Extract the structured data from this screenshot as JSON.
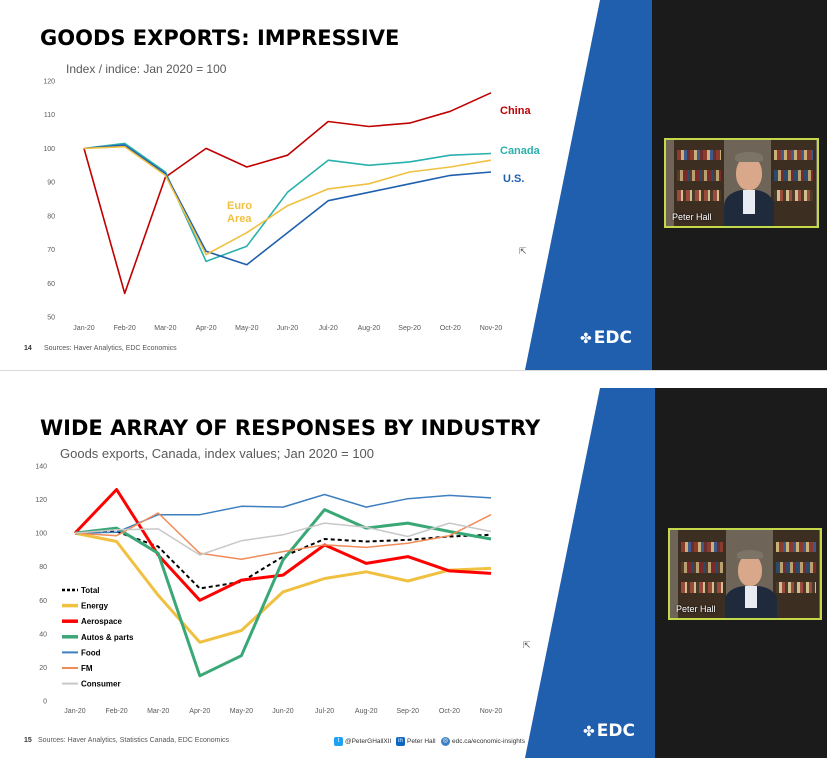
{
  "slides": [
    {
      "title": "GOODS EXPORTS: IMPRESSIVE",
      "subtitle": "Index / indice: Jan 2020 = 100",
      "page_number": "14",
      "source": "Sources: Haver Analytics, EDC Economics",
      "logo_text": "EDC",
      "presenter_name": "Peter Hall"
    },
    {
      "title": "WIDE ARRAY OF RESPONSES BY INDUSTRY",
      "subtitle": "Goods exports, Canada, index values; Jan 2020 = 100",
      "page_number": "15",
      "source": "Sources: Haver Analytics, Statistics Canada, EDC Economics",
      "logo_text": "EDC",
      "presenter_name": "Peter Hall",
      "social": {
        "twitter": "@PeterGHallXII",
        "linkedin": "Peter Hall",
        "web": "edc.ca/economic-insights"
      }
    }
  ],
  "colors": {
    "blue_band": "#1f5fae",
    "black_panel": "#1b1b1b",
    "video_border": "#c4d94a"
  },
  "chart_data": [
    {
      "type": "line",
      "title": "",
      "ylim": [
        50,
        120
      ],
      "yticks": [
        50,
        60,
        70,
        80,
        90,
        100,
        110,
        120
      ],
      "categories": [
        "Jan-20",
        "Feb-20",
        "Mar-20",
        "Apr-20",
        "May-20",
        "Jun-20",
        "Jul-20",
        "Aug-20",
        "Sep-20",
        "Oct-20",
        "Nov-20"
      ],
      "grid": false,
      "legend": "direct labels",
      "series": [
        {
          "name": "China",
          "color": "#c00000",
          "values": [
            100,
            57,
            91.5,
            100,
            94.5,
            98,
            108,
            106.5,
            107.5,
            111,
            116.5
          ]
        },
        {
          "name": "Canada",
          "color": "#2ab0ad",
          "values": [
            100,
            101.5,
            93,
            66.5,
            71,
            87,
            96.5,
            95,
            96,
            98,
            98.5
          ]
        },
        {
          "name": "U.S.",
          "color": "#1f5fae",
          "values": [
            100,
            101,
            92.5,
            69.5,
            65.5,
            75,
            84.5,
            87,
            89.5,
            92,
            93
          ]
        },
        {
          "name": "Euro Area",
          "color": "#f0c040",
          "values": [
            100,
            100.5,
            92,
            68.5,
            75,
            83,
            88,
            89.5,
            93,
            94.5,
            96.5
          ]
        }
      ],
      "series_labels": {
        "China": "China",
        "Canada": "Canada",
        "U.S.": "U.S.",
        "Euro_line1": "Euro",
        "Euro_line2": "Area"
      }
    },
    {
      "type": "line",
      "title": "",
      "ylim": [
        0,
        140
      ],
      "yticks": [
        0,
        20,
        40,
        60,
        80,
        100,
        120,
        140
      ],
      "categories": [
        "Jan-20",
        "Feb-20",
        "Mar-20",
        "Apr-20",
        "May-20",
        "Jun-20",
        "Jul-20",
        "Aug-20",
        "Sep-20",
        "Oct-20",
        "Nov-20"
      ],
      "grid": false,
      "legend": "left",
      "series": [
        {
          "name": "Total",
          "color": "#000000",
          "dash": true,
          "width": 2,
          "values": [
            100,
            101,
            92,
            67,
            71,
            86,
            96.5,
            95,
            96,
            98,
            99
          ]
        },
        {
          "name": "Energy",
          "color": "#f0c040",
          "width": 3,
          "values": [
            100,
            95,
            63,
            35,
            42,
            65,
            73,
            77,
            71.5,
            78,
            79
          ]
        },
        {
          "name": "Aerospace",
          "color": "#ff0000",
          "width": 3,
          "values": [
            100,
            126,
            87,
            60,
            72,
            75,
            93,
            82,
            86,
            77.5,
            76
          ]
        },
        {
          "name": "Autos & parts",
          "color": "#3aa876",
          "width": 3,
          "values": [
            100,
            103,
            88,
            15,
            27,
            84,
            114,
            103,
            106,
            101,
            96.5
          ]
        },
        {
          "name": "Food",
          "color": "#3e7fc1",
          "width": 1.5,
          "values": [
            100,
            100.5,
            111,
            111,
            116,
            115.5,
            123,
            115.5,
            120.5,
            122.5,
            121
          ]
        },
        {
          "name": "FM",
          "color": "#f08c5a",
          "width": 1.5,
          "values": [
            100,
            98.5,
            112,
            88,
            84.5,
            89,
            93,
            91.5,
            94,
            98.5,
            111
          ]
        },
        {
          "name": "Consumer",
          "color": "#c8c8c8",
          "width": 1.5,
          "values": [
            100,
            102,
            102.5,
            87,
            95.5,
            99,
            106,
            103.5,
            98,
            106,
            101
          ]
        }
      ]
    }
  ]
}
